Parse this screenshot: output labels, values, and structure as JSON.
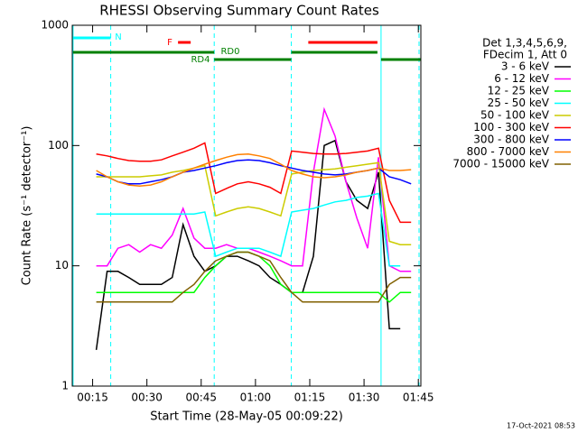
{
  "chart_data": {
    "type": "line",
    "title": "RHESSI Observing Summary Count Rates",
    "xlabel": "Start Time (28-May-05 00:09:22)",
    "ylabel": "Count Rate (s⁻¹ detector⁻¹)",
    "footer": "17-Oct-2021 08:53",
    "legend_header": [
      "Det 1,3,4,5,6,9,",
      "FDecim 1, Att 0"
    ],
    "legend": "right",
    "log_y": true,
    "xlim": [
      9.37,
      105.7
    ],
    "ylim": [
      1,
      1000
    ],
    "yticks": [
      1,
      10,
      100,
      1000
    ],
    "xticks": [
      {
        "value": 15,
        "label": "00:15"
      },
      {
        "value": 30,
        "label": "00:30"
      },
      {
        "value": 45,
        "label": "00:45"
      },
      {
        "value": 60,
        "label": "01:00"
      },
      {
        "value": 75,
        "label": "01:15"
      },
      {
        "value": 90,
        "label": "01:30"
      },
      {
        "value": 105,
        "label": "01:45"
      }
    ],
    "x": [
      16,
      19,
      22,
      25,
      28,
      31,
      34,
      37,
      40,
      43,
      46,
      49,
      52,
      55,
      58,
      61,
      64,
      67,
      70,
      73,
      76,
      79,
      82,
      85,
      88,
      91,
      94,
      97,
      100,
      103
    ],
    "series": [
      {
        "name": "3 - 6 keV",
        "color": "#000000",
        "values": [
          2,
          9,
          9,
          8,
          7,
          7,
          7,
          8,
          22,
          12,
          9,
          10,
          12,
          12,
          11,
          10,
          8,
          7,
          6,
          6,
          12,
          100,
          110,
          50,
          35,
          30,
          60,
          3,
          3,
          null
        ]
      },
      {
        "name": "6 - 12 keV",
        "color": "#ff00ff",
        "values": [
          10,
          10,
          14,
          15,
          13,
          15,
          14,
          18,
          30,
          17,
          14,
          14,
          15,
          14,
          14,
          13,
          12,
          11,
          10,
          10,
          60,
          200,
          120,
          50,
          25,
          14,
          80,
          10,
          9,
          9
        ]
      },
      {
        "name": "12 - 25 keV",
        "color": "#00ff00",
        "values": [
          6,
          6,
          6,
          6,
          6,
          6,
          6,
          6,
          6,
          6,
          8,
          10,
          12,
          13,
          13,
          12,
          10,
          7,
          6,
          6,
          6,
          6,
          6,
          6,
          6,
          6,
          6,
          5,
          6,
          6
        ]
      },
      {
        "name": "25 - 50 keV",
        "color": "#00ffff",
        "values": [
          27,
          27,
          27,
          27,
          27,
          27,
          27,
          27,
          27,
          27,
          28,
          12,
          13,
          14,
          14,
          14,
          13,
          12,
          28,
          29,
          30,
          32,
          34,
          35,
          37,
          38,
          40,
          10,
          10,
          null
        ]
      },
      {
        "name": "50 - 100 keV",
        "color": "#cccc00",
        "values": [
          55,
          55,
          55,
          55,
          55,
          56,
          57,
          60,
          62,
          65,
          68,
          26,
          28,
          30,
          31,
          30,
          28,
          26,
          58,
          60,
          62,
          63,
          64,
          66,
          68,
          70,
          72,
          16,
          15,
          15
        ]
      },
      {
        "name": "100 - 300 keV",
        "color": "#ff0000",
        "values": [
          85,
          82,
          78,
          75,
          74,
          74,
          76,
          82,
          88,
          95,
          105,
          40,
          44,
          48,
          50,
          48,
          45,
          40,
          90,
          88,
          86,
          85,
          85,
          86,
          88,
          90,
          95,
          35,
          23,
          23
        ]
      },
      {
        "name": "300 - 800 keV",
        "color": "#0000ff",
        "values": [
          58,
          55,
          50,
          48,
          48,
          50,
          52,
          55,
          60,
          62,
          65,
          68,
          72,
          75,
          76,
          75,
          72,
          68,
          65,
          62,
          60,
          58,
          57,
          58,
          60,
          62,
          65,
          55,
          52,
          48
        ]
      },
      {
        "name": "800 - 7000 keV",
        "color": "#ff8000",
        "values": [
          62,
          55,
          50,
          47,
          46,
          47,
          50,
          55,
          60,
          65,
          70,
          75,
          80,
          84,
          85,
          82,
          78,
          70,
          62,
          58,
          55,
          54,
          55,
          57,
          60,
          62,
          65,
          62,
          62,
          63
        ]
      },
      {
        "name": "7000 - 15000 keV",
        "color": "#806000",
        "values": [
          5,
          5,
          5,
          5,
          5,
          5,
          5,
          5,
          6,
          7,
          9,
          11,
          12,
          13,
          13,
          12,
          11,
          8,
          6,
          5,
          5,
          5,
          5,
          5,
          5,
          5,
          5,
          7,
          8,
          8
        ]
      }
    ],
    "flags": [
      {
        "label": "N",
        "color": "#00ffff",
        "intervals": [
          [
            9.6,
            20.0
          ]
        ]
      },
      {
        "label": "F",
        "color": "#ff0000",
        "intervals": [
          [
            38.6,
            42.1
          ],
          [
            74.6,
            93.7
          ]
        ]
      },
      {
        "label": "RD0",
        "color": "#008000",
        "intervals": [
          [
            9.6,
            48.6
          ],
          [
            69.9,
            93.7
          ]
        ]
      },
      {
        "label": "RD4",
        "color": "#008000",
        "intervals": [
          [
            48.6,
            69.9
          ],
          [
            94.7,
            105.7
          ]
        ]
      }
    ],
    "vlines": [
      {
        "x": 9.6,
        "style": "solid",
        "color": "#00ffff"
      },
      {
        "x": 20.0,
        "style": "dashed",
        "color": "#00ffff"
      },
      {
        "x": 48.6,
        "style": "dashed",
        "color": "#00ffff"
      },
      {
        "x": 69.9,
        "style": "dashed",
        "color": "#00ffff"
      },
      {
        "x": 94.7,
        "style": "solid",
        "color": "#00ffff"
      },
      {
        "x": 105.2,
        "style": "dashed",
        "color": "#00ffff"
      }
    ]
  }
}
